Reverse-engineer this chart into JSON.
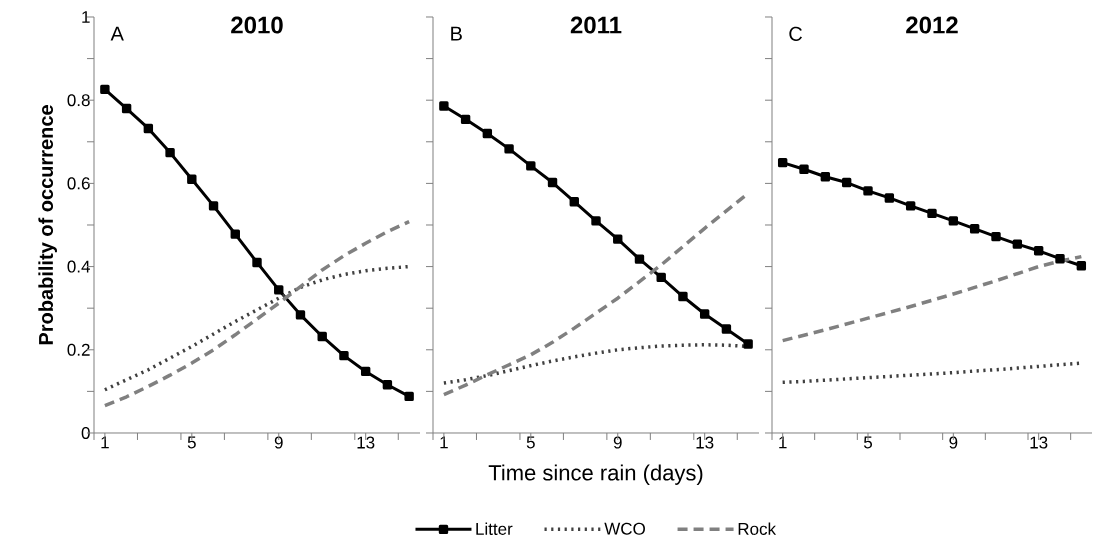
{
  "chart_data": [
    {
      "type": "line",
      "title": "2010",
      "ylabel": "Probability of occurrence",
      "annotations": [
        "A"
      ],
      "x": [
        1,
        2,
        3,
        4,
        5,
        6,
        7,
        8,
        9,
        10,
        11,
        12,
        13,
        14,
        15
      ],
      "xlim": [
        0.5,
        15.5
      ],
      "ylim": [
        0,
        1
      ],
      "xticks": [
        {
          "value": 0.5,
          "label": null
        },
        1,
        {
          "value": 2.5,
          "label": null
        },
        {
          "value": 4.5,
          "label": null
        },
        5,
        {
          "value": 6.5,
          "label": null
        },
        {
          "value": 8.5,
          "label": null
        },
        9,
        {
          "value": 10.5,
          "label": null
        },
        {
          "value": 12.5,
          "label": null
        },
        13,
        {
          "value": 14.5,
          "label": null
        }
      ],
      "yticks": [
        0,
        {
          "value": 0.1,
          "label": null
        },
        0.2,
        {
          "value": 0.3,
          "label": null
        },
        0.4,
        {
          "value": 0.5,
          "label": null
        },
        0.6,
        {
          "value": 0.7,
          "label": null
        },
        0.8,
        {
          "value": 0.9,
          "label": null
        },
        1
      ],
      "grid": false,
      "legend": false,
      "series": [
        {
          "color": "#000000",
          "marker": "square",
          "line_style": "solid",
          "values": [
            0.826,
            0.78,
            0.732,
            0.674,
            0.61,
            0.546,
            0.478,
            0.41,
            0.344,
            0.284,
            0.232,
            0.186,
            0.148,
            0.116,
            0.088
          ]
        },
        {
          "color": "#404040",
          "marker": "none",
          "line_style": "dotted",
          "values": [
            0.104,
            0.128,
            0.152,
            0.18,
            0.208,
            0.238,
            0.268,
            0.296,
            0.324,
            0.35,
            0.368,
            0.381,
            0.39,
            0.396,
            0.4
          ]
        },
        {
          "color": "#808080",
          "marker": "none",
          "line_style": "dashed",
          "values": [
            0.066,
            0.087,
            0.112,
            0.139,
            0.168,
            0.2,
            0.236,
            0.274,
            0.312,
            0.352,
            0.392,
            0.426,
            0.456,
            0.484,
            0.508
          ]
        }
      ]
    },
    {
      "type": "line",
      "title": "2011",
      "xlabel": "Time since rain (days)",
      "annotations": [
        "B"
      ],
      "x": [
        1,
        2,
        3,
        4,
        5,
        6,
        7,
        8,
        9,
        10,
        11,
        12,
        13,
        14,
        15
      ],
      "xlim": [
        0.5,
        15.5
      ],
      "ylim": [
        0,
        1
      ],
      "xticks": [
        {
          "value": 0.5,
          "label": null
        },
        1,
        {
          "value": 2.5,
          "label": null
        },
        {
          "value": 4.5,
          "label": null
        },
        5,
        {
          "value": 6.5,
          "label": null
        },
        {
          "value": 8.5,
          "label": null
        },
        9,
        {
          "value": 10.5,
          "label": null
        },
        {
          "value": 12.5,
          "label": null
        },
        13,
        {
          "value": 14.5,
          "label": null
        }
      ],
      "yticks": [
        0,
        {
          "value": 0.1,
          "label": null
        },
        0.2,
        {
          "value": 0.3,
          "label": null
        },
        0.4,
        {
          "value": 0.5,
          "label": null
        },
        0.6,
        {
          "value": 0.7,
          "label": null
        },
        0.8,
        {
          "value": 0.9,
          "label": null
        },
        1
      ],
      "tick_labels": "x",
      "grid": false,
      "legend": "bottom",
      "series": [
        {
          "name": "Litter",
          "color": "#000000",
          "marker": "square",
          "line_style": "solid",
          "values": [
            0.786,
            0.754,
            0.72,
            0.683,
            0.642,
            0.602,
            0.556,
            0.51,
            0.466,
            0.418,
            0.374,
            0.328,
            0.286,
            0.25,
            0.214
          ]
        },
        {
          "name": "WCO",
          "color": "#404040",
          "marker": "none",
          "line_style": "dotted",
          "values": [
            0.12,
            0.128,
            0.138,
            0.15,
            0.162,
            0.173,
            0.183,
            0.192,
            0.2,
            0.205,
            0.209,
            0.211,
            0.212,
            0.211,
            0.208
          ]
        },
        {
          "name": "Rock",
          "color": "#808080",
          "marker": "none",
          "line_style": "dashed",
          "values": [
            0.092,
            0.115,
            0.14,
            0.164,
            0.188,
            0.218,
            0.252,
            0.288,
            0.324,
            0.364,
            0.404,
            0.448,
            0.492,
            0.534,
            0.576
          ]
        }
      ]
    },
    {
      "type": "line",
      "title": "2012",
      "annotations": [
        "C"
      ],
      "x": [
        1,
        2,
        3,
        4,
        5,
        6,
        7,
        8,
        9,
        10,
        11,
        12,
        13,
        14,
        15
      ],
      "xlim": [
        0.5,
        15.5
      ],
      "ylim": [
        0,
        1
      ],
      "xticks": [
        {
          "value": 0.5,
          "label": null
        },
        1,
        {
          "value": 2.5,
          "label": null
        },
        {
          "value": 4.5,
          "label": null
        },
        5,
        {
          "value": 6.5,
          "label": null
        },
        {
          "value": 8.5,
          "label": null
        },
        9,
        {
          "value": 10.5,
          "label": null
        },
        {
          "value": 12.5,
          "label": null
        },
        13,
        {
          "value": 14.5,
          "label": null
        }
      ],
      "yticks": [
        0,
        {
          "value": 0.1,
          "label": null
        },
        0.2,
        {
          "value": 0.3,
          "label": null
        },
        0.4,
        {
          "value": 0.5,
          "label": null
        },
        0.6,
        {
          "value": 0.7,
          "label": null
        },
        0.8,
        {
          "value": 0.9,
          "label": null
        },
        1
      ],
      "tick_labels": "x",
      "grid": false,
      "legend": false,
      "series": [
        {
          "color": "#000000",
          "marker": "square",
          "line_style": "solid",
          "values": [
            0.65,
            0.634,
            0.616,
            0.602,
            0.582,
            0.565,
            0.546,
            0.528,
            0.51,
            0.491,
            0.472,
            0.454,
            0.438,
            0.419,
            0.402
          ]
        },
        {
          "color": "#404040",
          "marker": "none",
          "line_style": "dotted",
          "values": [
            0.122,
            0.124,
            0.127,
            0.13,
            0.133,
            0.136,
            0.139,
            0.142,
            0.145,
            0.149,
            0.152,
            0.156,
            0.16,
            0.164,
            0.168
          ]
        },
        {
          "color": "#808080",
          "marker": "none",
          "line_style": "dashed",
          "values": [
            0.222,
            0.235,
            0.248,
            0.262,
            0.276,
            0.29,
            0.304,
            0.319,
            0.334,
            0.35,
            0.366,
            0.383,
            0.4,
            0.413,
            0.424
          ]
        }
      ]
    }
  ]
}
